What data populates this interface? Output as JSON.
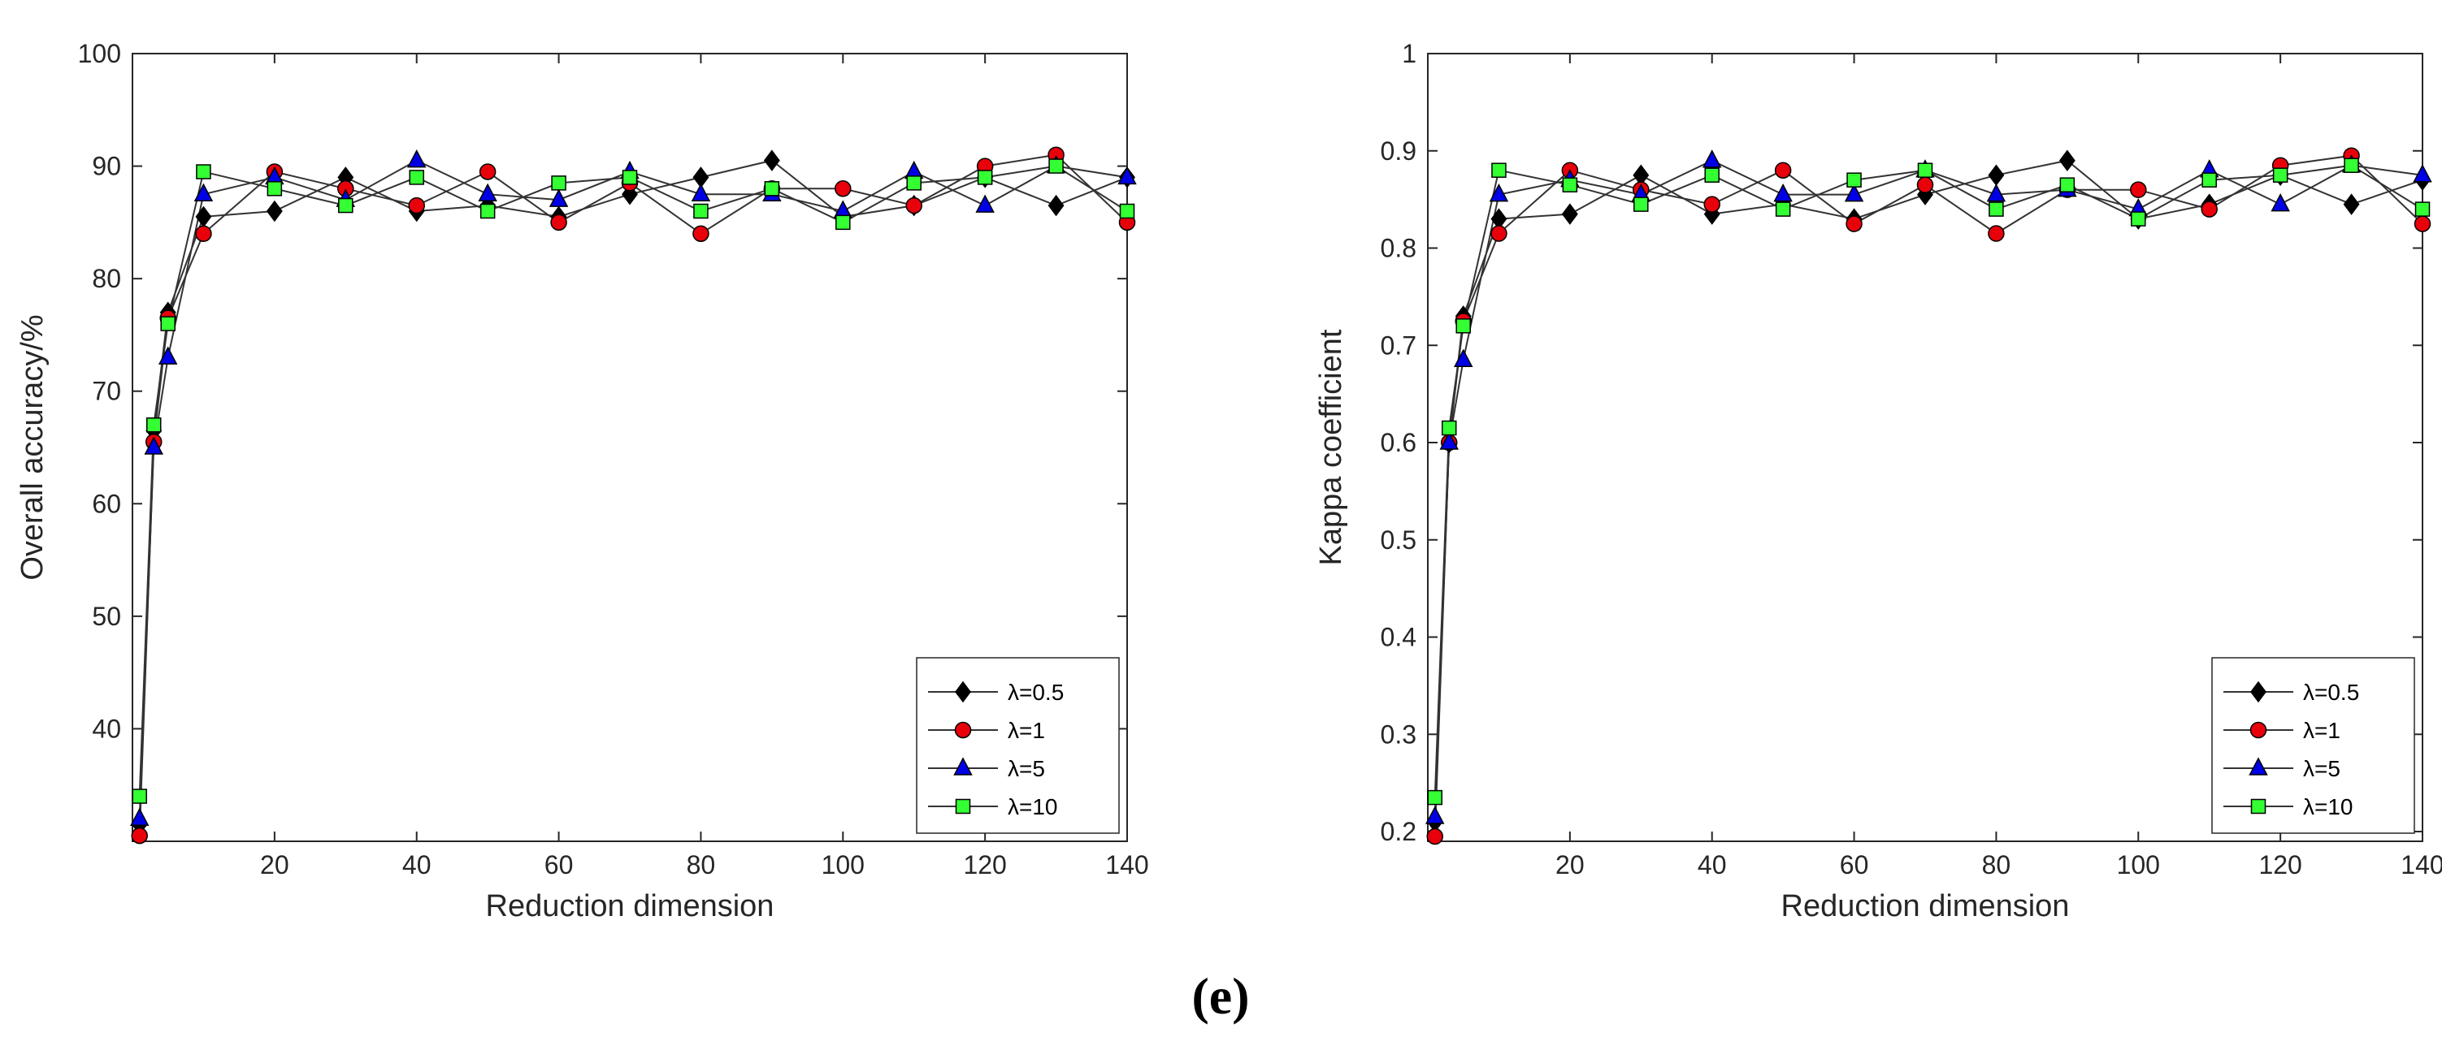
{
  "caption": "(e)",
  "chart_data": [
    {
      "type": "line",
      "title": "",
      "xlabel": "Reduction dimension",
      "ylabel": "Overall accuracy/%",
      "xlim": [
        0,
        140
      ],
      "ylim": [
        30,
        100
      ],
      "xticks": [
        20,
        40,
        60,
        80,
        100,
        120,
        140
      ],
      "yticks": [
        40,
        50,
        60,
        70,
        80,
        90,
        100
      ],
      "legend_position": "bottom-right",
      "x": [
        1,
        3,
        5,
        10,
        20,
        30,
        40,
        50,
        60,
        70,
        80,
        90,
        100,
        110,
        120,
        130,
        140
      ],
      "series": [
        {
          "name": "λ=0.5",
          "marker": "diamond",
          "color": "#000000",
          "values": [
            31.5,
            66.5,
            77.0,
            85.5,
            86.0,
            89.0,
            86.0,
            86.5,
            85.5,
            87.5,
            89.0,
            90.5,
            85.5,
            86.5,
            89.0,
            86.5,
            89.0
          ]
        },
        {
          "name": "λ=1",
          "marker": "circle",
          "color": "#e8000b",
          "values": [
            30.5,
            65.5,
            76.5,
            84.0,
            89.5,
            88.0,
            86.5,
            89.5,
            85.0,
            88.5,
            84.0,
            88.0,
            88.0,
            86.5,
            90.0,
            91.0,
            85.0
          ]
        },
        {
          "name": "λ=5",
          "marker": "triangle",
          "color": "#0000e6",
          "values": [
            32.0,
            65.0,
            73.0,
            87.5,
            89.0,
            87.0,
            90.5,
            87.5,
            87.0,
            89.5,
            87.5,
            87.5,
            86.0,
            89.5,
            86.5,
            90.0,
            89.0
          ]
        },
        {
          "name": "λ=10",
          "marker": "square",
          "color": "#33ff33",
          "values": [
            34.0,
            67.0,
            76.0,
            89.5,
            88.0,
            86.5,
            89.0,
            86.0,
            88.5,
            89.0,
            86.0,
            88.0,
            85.0,
            88.5,
            89.0,
            90.0,
            86.0
          ]
        }
      ]
    },
    {
      "type": "line",
      "title": "",
      "xlabel": "Reduction dimension",
      "ylabel": "Kappa coefficient",
      "xlim": [
        0,
        140
      ],
      "ylim": [
        0.19,
        1.0
      ],
      "xticks": [
        20,
        40,
        60,
        80,
        100,
        120,
        140
      ],
      "yticks": [
        0.2,
        0.3,
        0.4,
        0.5,
        0.6,
        0.7,
        0.8,
        0.9,
        1
      ],
      "legend_position": "bottom-right",
      "x": [
        1,
        3,
        5,
        10,
        20,
        30,
        40,
        50,
        60,
        70,
        80,
        90,
        100,
        110,
        120,
        130,
        140
      ],
      "series": [
        {
          "name": "λ=0.5",
          "marker": "diamond",
          "color": "#000000",
          "values": [
            0.21,
            0.6,
            0.73,
            0.83,
            0.835,
            0.875,
            0.835,
            0.845,
            0.83,
            0.855,
            0.875,
            0.89,
            0.83,
            0.845,
            0.875,
            0.845,
            0.87
          ]
        },
        {
          "name": "λ=1",
          "marker": "circle",
          "color": "#e8000b",
          "values": [
            0.195,
            0.6,
            0.725,
            0.815,
            0.88,
            0.86,
            0.845,
            0.88,
            0.825,
            0.865,
            0.815,
            0.86,
            0.86,
            0.84,
            0.885,
            0.895,
            0.825
          ]
        },
        {
          "name": "λ=5",
          "marker": "triangle",
          "color": "#0000e6",
          "values": [
            0.215,
            0.6,
            0.685,
            0.855,
            0.87,
            0.855,
            0.89,
            0.855,
            0.855,
            0.88,
            0.855,
            0.86,
            0.84,
            0.88,
            0.845,
            0.885,
            0.875
          ]
        },
        {
          "name": "λ=10",
          "marker": "square",
          "color": "#33ff33",
          "values": [
            0.235,
            0.615,
            0.72,
            0.88,
            0.865,
            0.845,
            0.875,
            0.84,
            0.87,
            0.88,
            0.84,
            0.865,
            0.83,
            0.87,
            0.875,
            0.885,
            0.84
          ]
        }
      ]
    }
  ]
}
